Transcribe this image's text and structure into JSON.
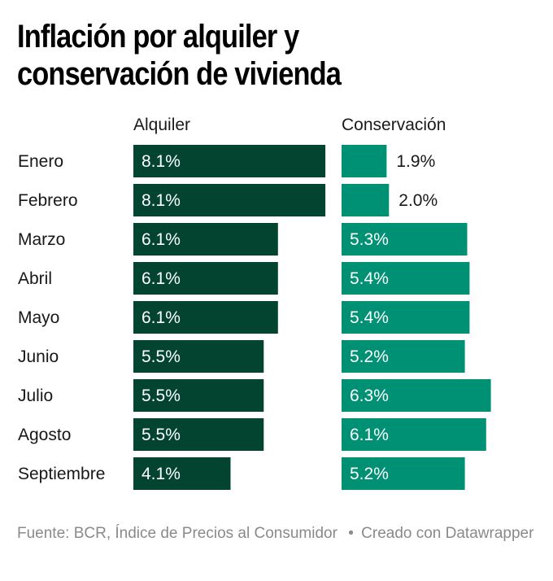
{
  "title": "Inflación por alquiler y conservación de vivienda",
  "title_lines": [
    "Inflación por alquiler y",
    "conservación de vivienda"
  ],
  "footer": {
    "source": "Fuente: BCR, Índice de Precios al Consumidor",
    "separator": "•",
    "credit": "Creado con Datawrapper"
  },
  "colors": {
    "alquiler": "#034430",
    "conservacion": "#009073",
    "label_inside": "#ffffff",
    "label_outside": "#181818",
    "category": "#181818"
  },
  "chart_data": {
    "type": "bar",
    "orientation": "horizontal",
    "title": "Inflación por alquiler y conservación de vivienda",
    "categories": [
      "Enero",
      "Febrero",
      "Marzo",
      "Abril",
      "Mayo",
      "Junio",
      "Julio",
      "Agosto",
      "Septiembre"
    ],
    "series": [
      {
        "name": "Alquiler",
        "values": [
          8.1,
          8.1,
          6.1,
          6.1,
          6.1,
          5.5,
          5.5,
          5.5,
          4.1
        ],
        "labels": [
          "8.1%",
          "8.1%",
          "6.1%",
          "6.1%",
          "6.1%",
          "5.5%",
          "5.5%",
          "5.5%",
          "4.1%"
        ]
      },
      {
        "name": "Conservación",
        "values": [
          1.9,
          2.0,
          5.3,
          5.4,
          5.4,
          5.2,
          6.3,
          6.1,
          5.2
        ],
        "labels": [
          "1.9%",
          "2.0%",
          "5.3%",
          "5.4%",
          "5.4%",
          "5.2%",
          "6.3%",
          "6.1%",
          "5.2%"
        ]
      }
    ],
    "xlabel": "",
    "ylabel": "",
    "unit": "%",
    "grid": false,
    "legend": "column headers at top"
  }
}
